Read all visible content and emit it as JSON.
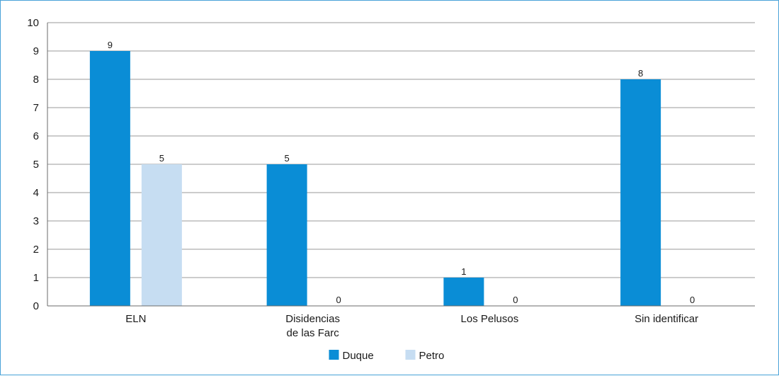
{
  "chart_data": {
    "type": "bar",
    "categories": [
      [
        "ELN"
      ],
      [
        "Disidencias",
        "de las Farc"
      ],
      [
        "Los Pelusos"
      ],
      [
        "Sin identificar"
      ]
    ],
    "series": [
      {
        "name": "Duque",
        "color": "#0a8dd6",
        "values": [
          9,
          5,
          1,
          8
        ]
      },
      {
        "name": "Petro",
        "color": "#c6ddf2",
        "values": [
          5,
          0,
          0,
          0
        ]
      }
    ],
    "ylim": [
      0,
      10
    ],
    "yticks": [
      "0",
      "1",
      "2",
      "3",
      "4",
      "5",
      "6",
      "7",
      "8",
      "9",
      "10"
    ],
    "grid": true,
    "legend_position": "bottom",
    "title": "",
    "xlabel": "",
    "ylabel": ""
  }
}
